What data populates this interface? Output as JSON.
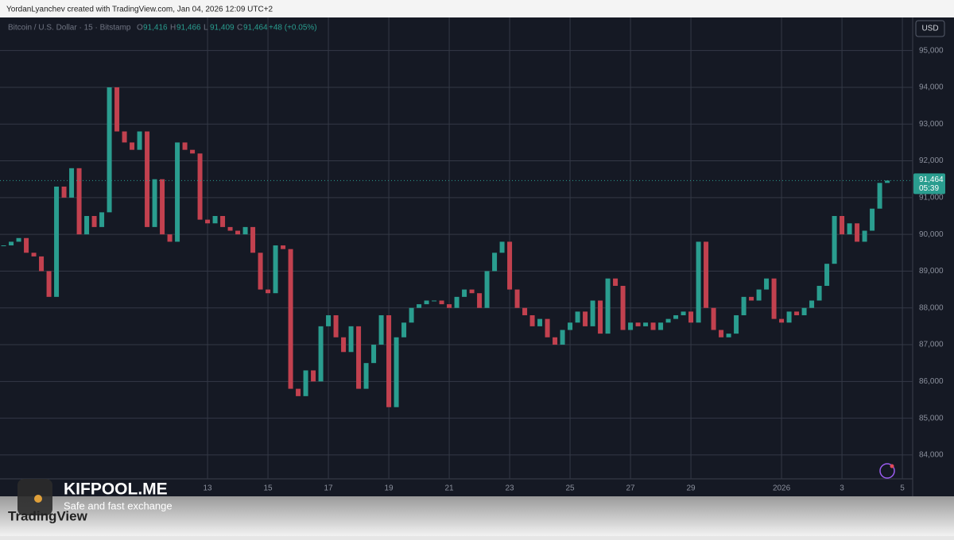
{
  "page": {
    "credit": "YordanLyanchev created with TradingView.com, Jan 04, 2026 12:09 UTC+2",
    "brand": "KIFPOOL.ME",
    "tagline": "Safe and fast exchange",
    "platform": "TradingView"
  },
  "chart_data": {
    "type": "candlestick",
    "title": "Bitcoin / U.S. Dollar · 15 · Bitstamp",
    "ohlc": [
      {
        "label": "O",
        "value": "91,416"
      },
      {
        "label": "H",
        "value": "91,466"
      },
      {
        "label": "L",
        "value": "91,409"
      },
      {
        "label": "C",
        "value": "91,464"
      }
    ],
    "change": "+48 (+0.05%)",
    "currency": "USD",
    "last_price": {
      "value": 91464,
      "label": "91,464"
    },
    "countdown": "05:39",
    "colors": {
      "up": "#2a9d8f",
      "down": "#c2414f"
    },
    "grid": true,
    "xlim": [
      6.13,
      36.34
    ],
    "xticks": [
      13,
      15,
      17,
      19,
      21,
      23,
      25,
      27,
      29,
      {
        "value": 32,
        "label": "2026"
      },
      {
        "value": 34,
        "label": "3"
      },
      {
        "value": 36,
        "label": "5"
      }
    ],
    "ylim": [
      83350,
      95900
    ],
    "yticks": [
      {
        "value": 84000,
        "label": "84,000"
      },
      {
        "value": 85000,
        "label": "85,000"
      },
      {
        "value": 86000,
        "label": "86,000"
      },
      {
        "value": 87000,
        "label": "87,000"
      },
      {
        "value": 88000,
        "label": "88,000"
      },
      {
        "value": 89000,
        "label": "89,000"
      },
      {
        "value": 90000,
        "label": "90,000"
      },
      {
        "value": 91000,
        "label": "91,000"
      },
      {
        "value": 92000,
        "label": "92,000"
      },
      {
        "value": 93000,
        "label": "93,000"
      },
      {
        "value": 94000,
        "label": "94,000"
      },
      {
        "value": 95000,
        "label": "95,000"
      }
    ],
    "x": [
      6.25,
      6.5,
      6.75,
      7,
      7.25,
      7.5,
      7.75,
      8,
      8.25,
      8.5,
      8.75,
      9,
      9.25,
      9.5,
      9.75,
      10,
      10.25,
      10.5,
      10.75,
      11,
      11.25,
      11.5,
      11.75,
      12,
      12.25,
      12.5,
      12.75,
      13,
      13.25,
      13.5,
      13.75,
      14,
      14.25,
      14.5,
      14.75,
      15,
      15.25,
      15.5,
      15.75,
      16,
      16.25,
      16.5,
      16.75,
      17,
      17.25,
      17.5,
      17.75,
      18,
      18.25,
      18.5,
      18.75,
      19,
      19.25,
      19.5,
      19.75,
      20,
      20.25,
      20.5,
      20.75,
      21,
      21.25,
      21.5,
      21.75,
      22,
      22.25,
      22.5,
      22.75,
      23,
      23.25,
      23.5,
      23.75,
      24,
      24.25,
      24.5,
      24.75,
      25,
      25.25,
      25.5,
      25.75,
      26,
      26.25,
      26.5,
      26.75,
      27,
      27.25,
      27.5,
      27.75,
      28,
      28.25,
      28.5,
      28.75,
      29,
      29.25,
      29.5,
      29.75,
      30,
      30.25,
      30.5,
      30.75,
      31,
      31.25,
      31.5,
      31.75,
      32,
      32.25,
      32.5,
      32.75,
      33,
      33.25,
      33.5,
      33.75,
      34,
      34.25,
      34.5,
      34.75,
      35,
      35.25,
      35.5
    ],
    "values": [
      89700,
      89800,
      89900,
      89500,
      89400,
      89000,
      88300,
      91300,
      91000,
      91800,
      90000,
      90500,
      90200,
      90600,
      94000,
      92800,
      92500,
      92300,
      92800,
      90200,
      91500,
      90000,
      89800,
      92500,
      92300,
      92200,
      90400,
      90300,
      90500,
      90200,
      90100,
      90000,
      90200,
      89500,
      88500,
      88400,
      89700,
      89600,
      85800,
      85600,
      86300,
      86000,
      87500,
      87800,
      87200,
      86800,
      87500,
      85800,
      86500,
      87000,
      87800,
      85300,
      87200,
      87600,
      88000,
      88100,
      88200,
      88200,
      88100,
      88000,
      88300,
      88500,
      88400,
      88000,
      89000,
      89500,
      89800,
      88500,
      88000,
      87800,
      87500,
      87700,
      87200,
      87000,
      87400,
      87600,
      87900,
      87500,
      88200,
      87300,
      88800,
      88600,
      87400,
      87600,
      87500,
      87600,
      87400,
      87600,
      87700,
      87800,
      87900,
      87600,
      89800,
      88000,
      87400,
      87200,
      87300,
      87800,
      88300,
      88200,
      88500,
      88800,
      87700,
      87600,
      87900,
      87800,
      88000,
      88200,
      88600,
      89200,
      90500,
      90000,
      90300,
      89800,
      90100,
      90700,
      91400,
      91464
    ]
  }
}
